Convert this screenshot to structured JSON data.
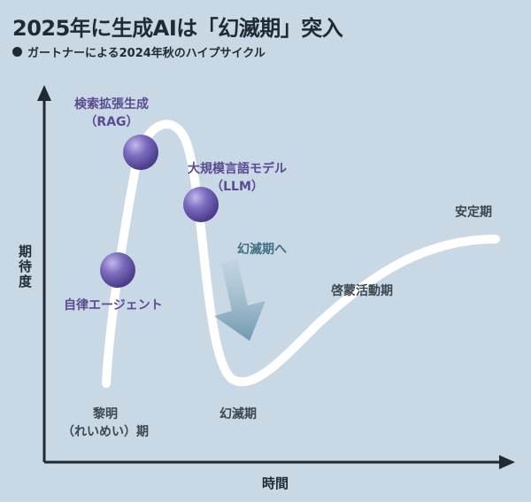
{
  "title": "2025年に生成AIは「幻滅期」突入",
  "subtitle": "ガートナーによる2024年秋のハイプサイクル",
  "y_axis_label": "期待度",
  "x_axis_label": "時間",
  "phases": {
    "innovation_trigger": "黎明",
    "innovation_trigger_reading": "（れいめい）期",
    "trough": "幻滅期",
    "slope": "啓蒙活動期",
    "plateau": "安定期"
  },
  "technologies": {
    "rag_line1": "検索拡張生成",
    "rag_line2": "（RAG）",
    "llm_line1": "大規模言語モデル",
    "llm_line2": "（LLM）",
    "agent": "自律エージェント"
  },
  "arrow_label": "幻滅期へ",
  "colors": {
    "background": "#c8d8e5",
    "curve": "#ffffff",
    "axis": "#1f2a33",
    "marker": "#6a5aa8",
    "tech_label": "#5a4a92",
    "arrow": "#7a9fb2"
  }
}
